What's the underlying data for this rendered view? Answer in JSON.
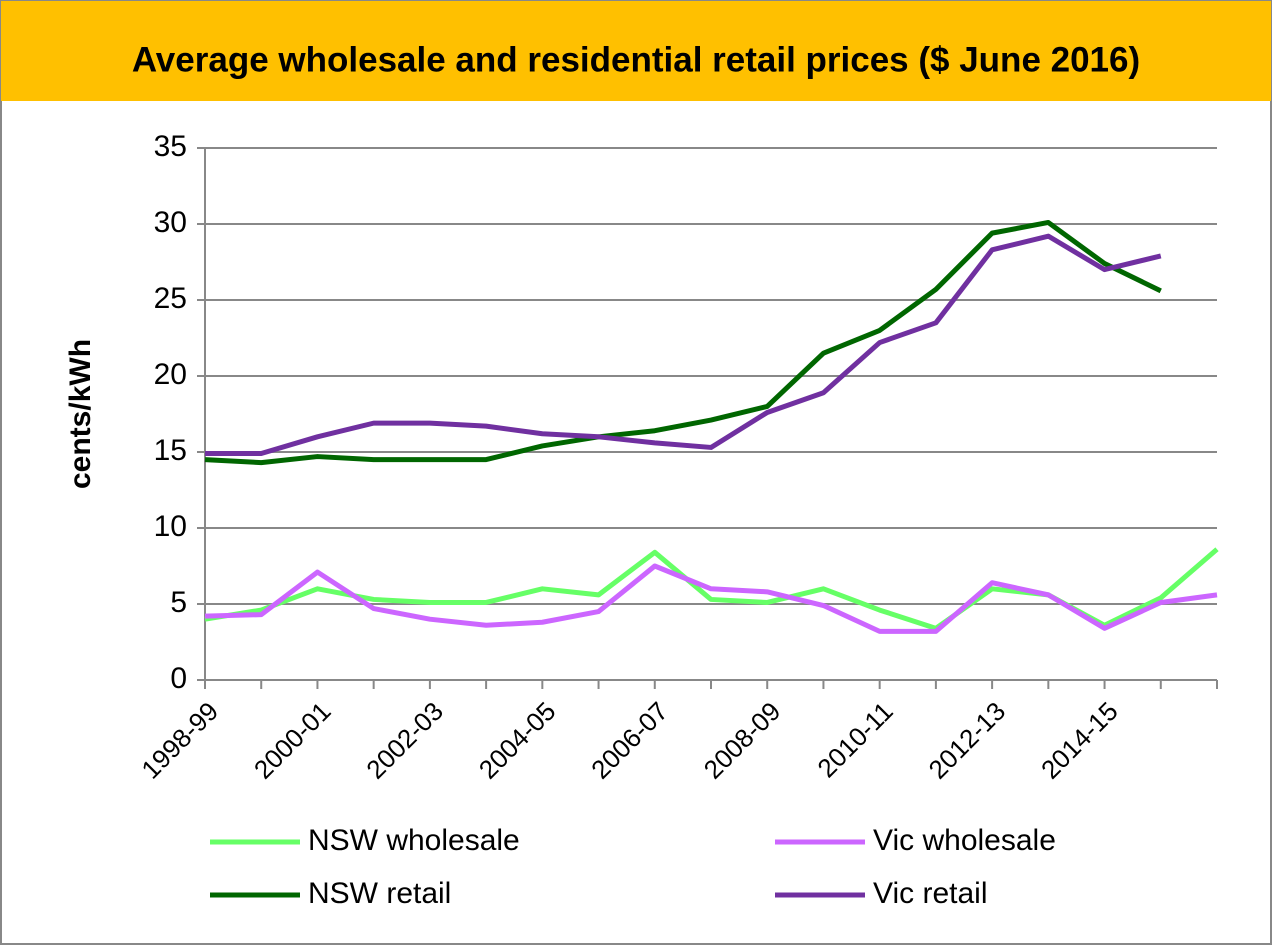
{
  "chart_data": {
    "type": "line",
    "title": "Average wholesale and residential retail prices ($ June 2016)",
    "y_label": "cents/kWh",
    "categories": [
      "1998-99",
      null,
      "2000-01",
      null,
      "2002-03",
      null,
      "2004-05",
      null,
      "2006-07",
      null,
      "2008-09",
      null,
      "2010-11",
      null,
      "2012-13",
      null,
      "2014-15",
      null,
      null
    ],
    "series": [
      {
        "name": "NSW wholesale",
        "color": "#66ff66",
        "values": [
          4.0,
          4.6,
          6.0,
          5.3,
          5.1,
          5.1,
          6.0,
          5.6,
          8.4,
          5.3,
          5.1,
          6.0,
          4.6,
          3.4,
          6.0,
          5.6,
          3.6,
          5.4,
          8.6
        ]
      },
      {
        "name": "Vic wholesale",
        "color": "#cc66ff",
        "values": [
          4.2,
          4.3,
          7.1,
          4.7,
          4.0,
          3.6,
          3.8,
          4.5,
          7.5,
          6.0,
          5.8,
          4.9,
          3.2,
          3.2,
          6.4,
          5.6,
          3.4,
          5.1,
          5.6
        ]
      },
      {
        "name": "NSW retail",
        "color": "#006600",
        "values": [
          14.5,
          14.3,
          14.7,
          14.5,
          14.5,
          14.5,
          15.4,
          16.0,
          16.4,
          17.1,
          18.0,
          21.5,
          23.0,
          25.7,
          29.4,
          30.1,
          27.4,
          25.6,
          null
        ]
      },
      {
        "name": "Vic retail",
        "color": "#7030a0",
        "values": [
          14.9,
          14.9,
          16.0,
          16.9,
          16.9,
          16.7,
          16.2,
          16.0,
          15.6,
          15.3,
          17.6,
          18.9,
          22.2,
          23.5,
          28.3,
          29.2,
          27.0,
          27.9,
          null
        ]
      }
    ],
    "ylim": [
      0,
      35
    ],
    "yticks": [
      0,
      5,
      10,
      15,
      20,
      25,
      30,
      35
    ],
    "grid": true
  }
}
